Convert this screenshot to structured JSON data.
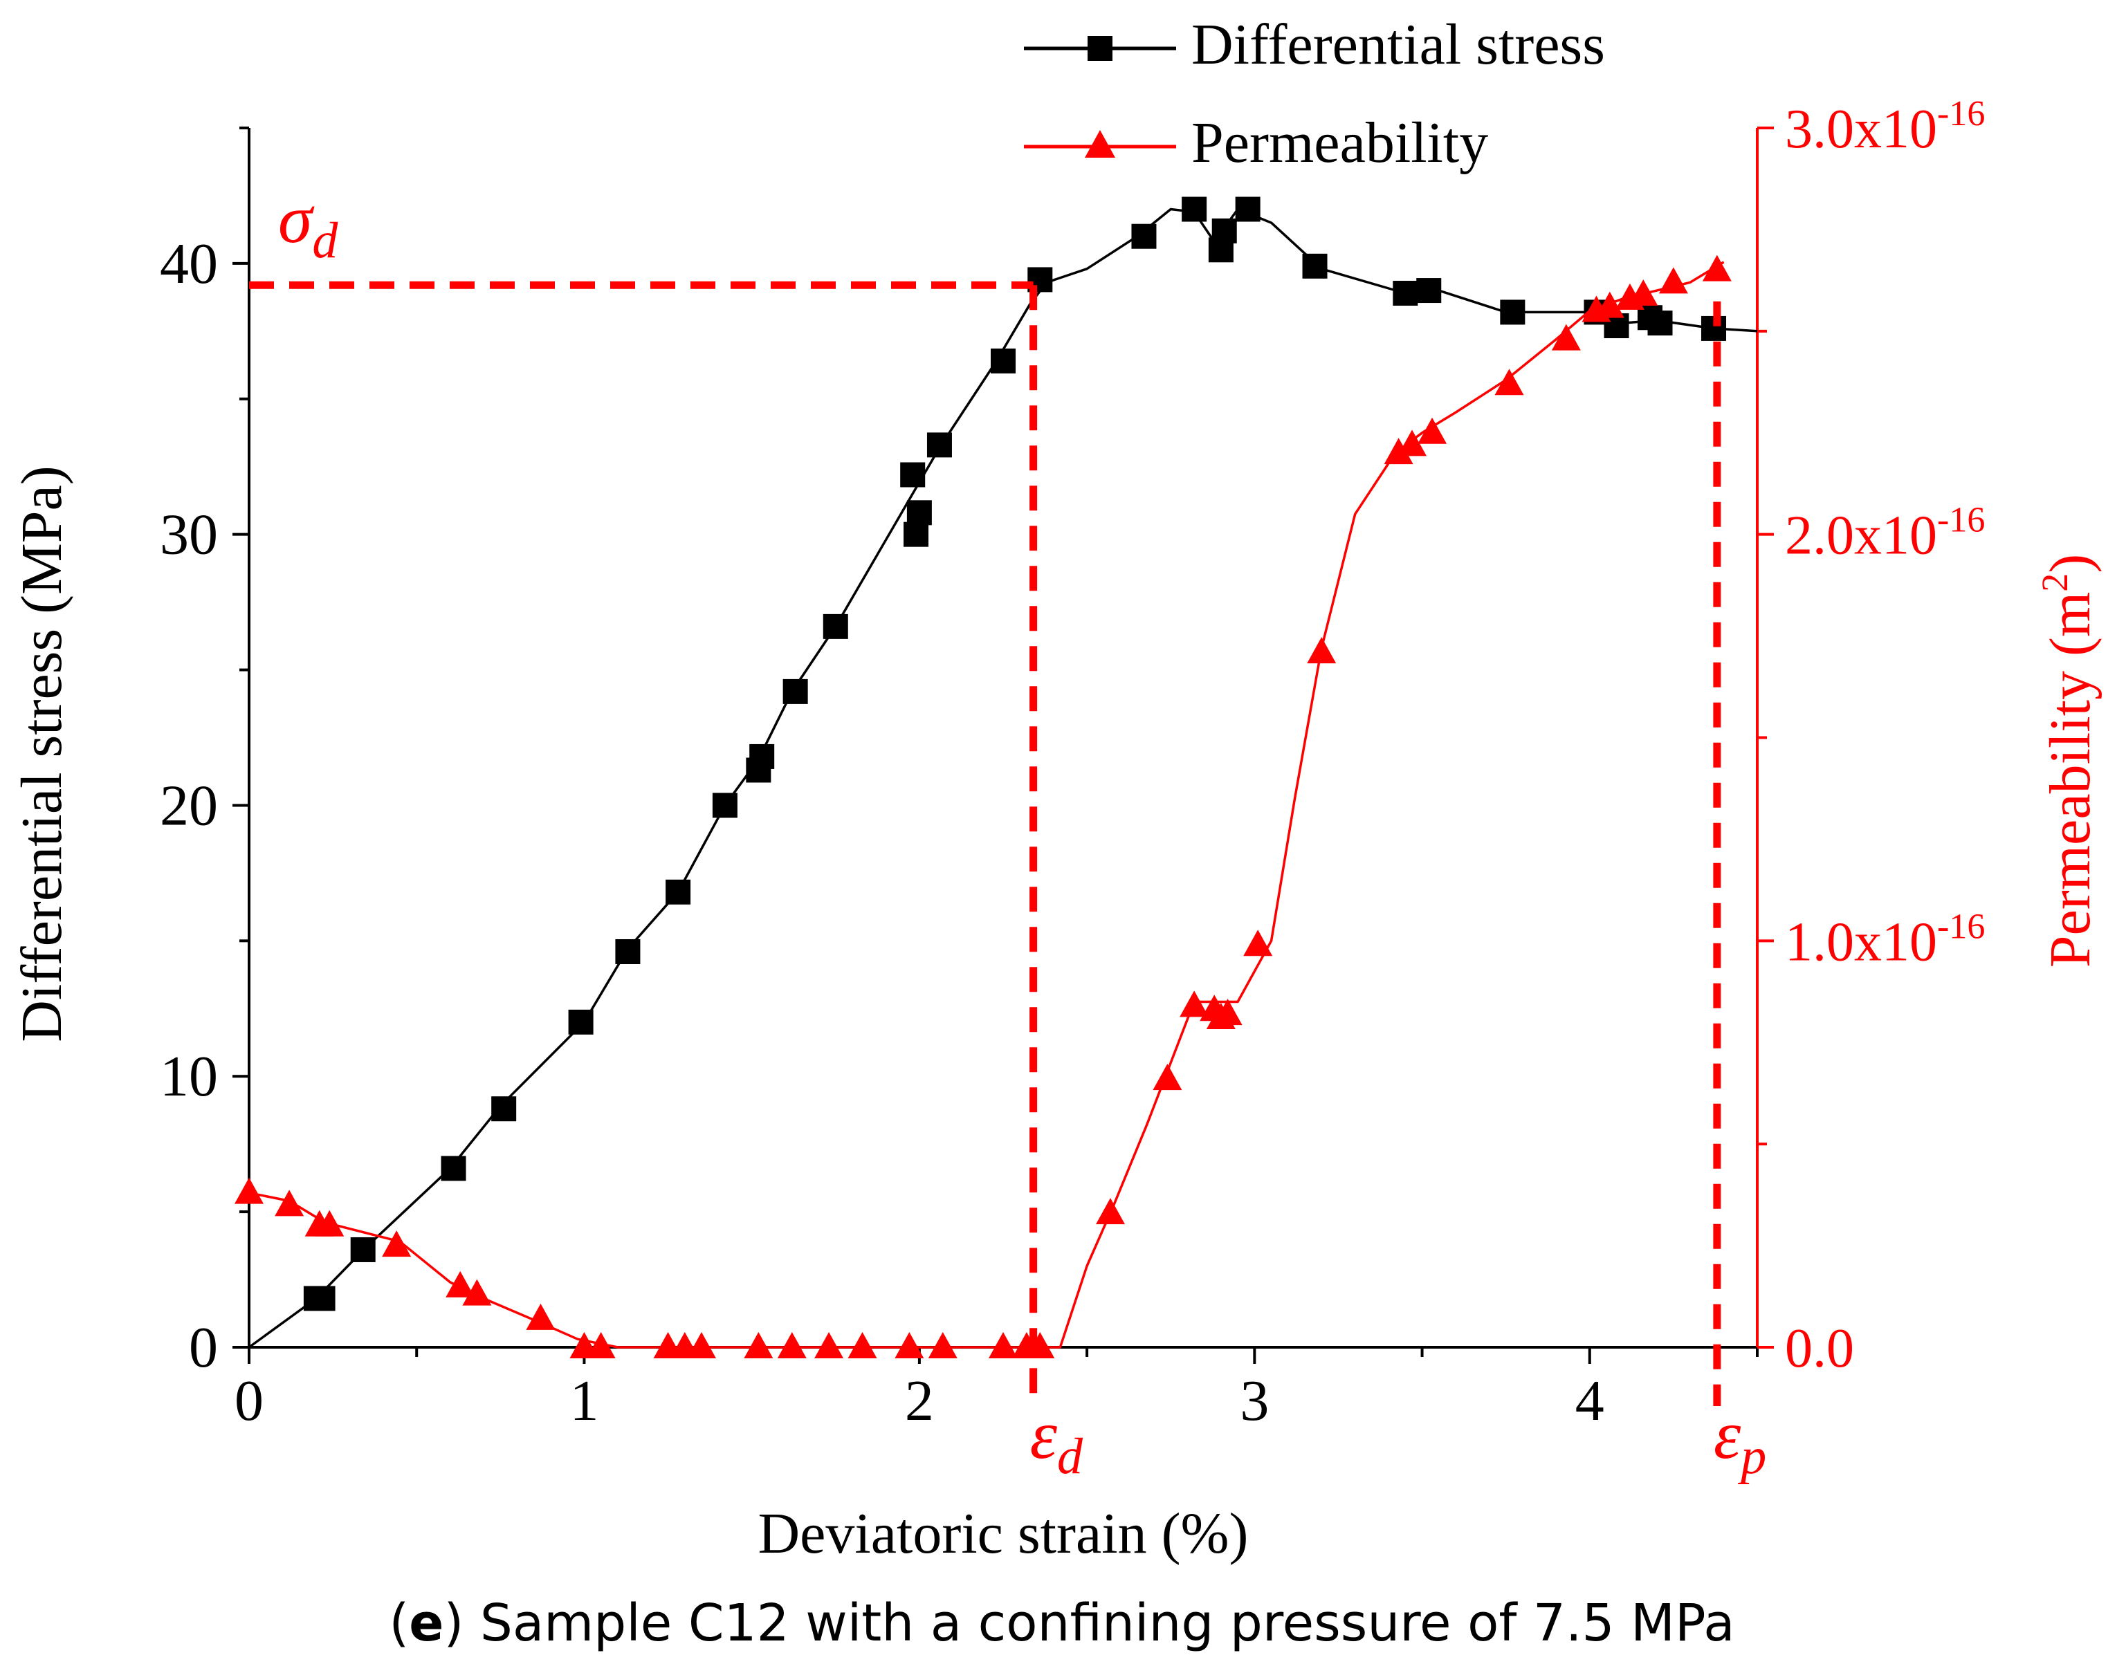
{
  "chart_data": {
    "type": "line",
    "caption": {
      "letter": "e",
      "text": "Sample C12 with a confining pressure of 7.5 MPa"
    },
    "xlabel": "Deviatoric strain (%)",
    "ylabel": "Differential stress (MPa)",
    "y2label": "Permeability (m",
    "y2label_sup": "2",
    "y2label_close": ")",
    "xlim": [
      0,
      4.5
    ],
    "ylim": [
      0,
      45
    ],
    "y2lim": [
      0,
      3e-16
    ],
    "x_ticks": [
      0,
      1,
      2,
      3,
      4
    ],
    "y_ticks": [
      0,
      10,
      20,
      30,
      40
    ],
    "y2_ticks": [
      {
        "value": 0,
        "mantissa": "0.0",
        "exp": ""
      },
      {
        "value": 1e-16,
        "mantissa": "1.0x10",
        "exp": "-16"
      },
      {
        "value": 2e-16,
        "mantissa": "2.0x10",
        "exp": "-16"
      },
      {
        "value": 3e-16,
        "mantissa": "3.0x10",
        "exp": "-16"
      }
    ],
    "grid": false,
    "legend_position": "top-center",
    "colors": {
      "stress": "#000000",
      "permeability": "#ff0000",
      "annotation": "#ff0000"
    },
    "series": [
      {
        "name": "Differential stress",
        "axis": "left",
        "marker": "square",
        "x": [
          0,
          0.2,
          0.35,
          0.6,
          0.75,
          1.0,
          1.13,
          1.28,
          1.42,
          1.52,
          1.62,
          1.75,
          1.98,
          2.06,
          2.23,
          2.33,
          2.38,
          2.5,
          2.65,
          2.75,
          2.82,
          2.88,
          2.95,
          3.05,
          3.2,
          3.45,
          3.55,
          3.75,
          4.02,
          4.1,
          4.2,
          4.37,
          4.5
        ],
        "y": [
          0,
          1.8,
          3.7,
          6.6,
          8.9,
          12.0,
          14.7,
          16.8,
          20.0,
          21.7,
          24.2,
          26.6,
          31.5,
          33.2,
          36.4,
          38.5,
          39.3,
          39.8,
          41.0,
          42.0,
          41.9,
          40.8,
          42.0,
          41.5,
          39.8,
          38.9,
          39.0,
          38.2,
          38.2,
          37.8,
          37.9,
          37.6,
          37.5
        ],
        "marker_x": [
          0.2,
          0.22,
          0.34,
          0.61,
          0.76,
          0.99,
          1.13,
          1.28,
          1.42,
          1.52,
          1.53,
          1.63,
          1.75,
          1.98,
          1.99,
          2.0,
          2.06,
          2.25,
          2.36,
          2.67,
          2.82,
          2.9,
          2.91,
          2.98,
          3.18,
          3.45,
          3.52,
          3.77,
          4.02,
          4.08,
          4.18,
          4.21,
          4.37
        ],
        "marker_y": [
          1.8,
          1.8,
          3.6,
          6.6,
          8.8,
          12.0,
          14.6,
          16.8,
          20.0,
          21.3,
          21.8,
          24.2,
          26.6,
          32.2,
          30.0,
          30.8,
          33.3,
          36.4,
          39.4,
          41.0,
          42.0,
          40.5,
          41.2,
          42.0,
          39.9,
          38.9,
          39.0,
          38.2,
          38.2,
          37.7,
          38.0,
          37.8,
          37.6
        ]
      },
      {
        "name": "Permeability",
        "axis": "right",
        "marker": "triangle",
        "x": [
          0,
          0.12,
          0.2,
          0.26,
          0.45,
          0.6,
          0.7,
          0.87,
          0.98,
          1.1,
          1.5,
          2.0,
          2.3,
          2.42,
          2.5,
          2.58,
          2.68,
          2.75,
          2.82,
          2.88,
          2.95,
          3.05,
          3.12,
          3.2,
          3.3,
          3.42,
          3.5,
          3.6,
          3.75,
          3.9,
          4.0,
          4.1,
          4.2,
          4.3,
          4.4
        ],
        "y": [
          3.8e-17,
          3.6e-17,
          3.2e-17,
          3e-17,
          2.6e-17,
          1.6e-17,
          1.2e-17,
          6e-18,
          2e-18,
          0,
          0,
          0,
          0,
          0,
          2e-17,
          3.5e-17,
          5.5e-17,
          7e-17,
          8.5e-17,
          8.5e-17,
          8.5e-17,
          1e-16,
          1.35e-16,
          1.72e-16,
          2.05e-16,
          2.2e-16,
          2.25e-16,
          2.3e-16,
          2.38e-16,
          2.48e-16,
          2.55e-16,
          2.58e-16,
          2.6e-16,
          2.62e-16,
          2.67e-16
        ],
        "marker_x": [
          0.0,
          0.12,
          0.21,
          0.24,
          0.44,
          0.63,
          0.68,
          0.87,
          1.0,
          1.05,
          1.25,
          1.3,
          1.35,
          1.52,
          1.62,
          1.73,
          1.83,
          1.97,
          2.07,
          2.25,
          2.32,
          2.36,
          2.57,
          2.74,
          2.82,
          2.88,
          2.9,
          2.92,
          3.01,
          3.2,
          3.43,
          3.47,
          3.53,
          3.76,
          3.93,
          4.02,
          4.06,
          4.12,
          4.16,
          4.25,
          4.38
        ],
        "marker_y": [
          3.8e-17,
          3.5e-17,
          3e-17,
          3e-17,
          2.5e-17,
          1.5e-17,
          1.3e-17,
          7e-18,
          0,
          0,
          0,
          0,
          0,
          0,
          0,
          0,
          0,
          0,
          0,
          0,
          0,
          0,
          3.3e-17,
          6.6e-17,
          8.4e-17,
          8.3e-17,
          8.1e-17,
          8.2e-17,
          9.9e-17,
          1.71e-16,
          2.2e-16,
          2.22e-16,
          2.25e-16,
          2.37e-16,
          2.48e-16,
          2.55e-16,
          2.56e-16,
          2.58e-16,
          2.59e-16,
          2.62e-16,
          2.65e-16
        ]
      }
    ],
    "annotations": {
      "sigma_d": {
        "base": "σ",
        "sub": "d",
        "value": 39.2
      },
      "epsilon_d": {
        "base": "ε",
        "sub": "d",
        "value": 2.34
      },
      "epsilon_p": {
        "base": "ε",
        "sub": "p",
        "value": 4.38
      }
    }
  }
}
